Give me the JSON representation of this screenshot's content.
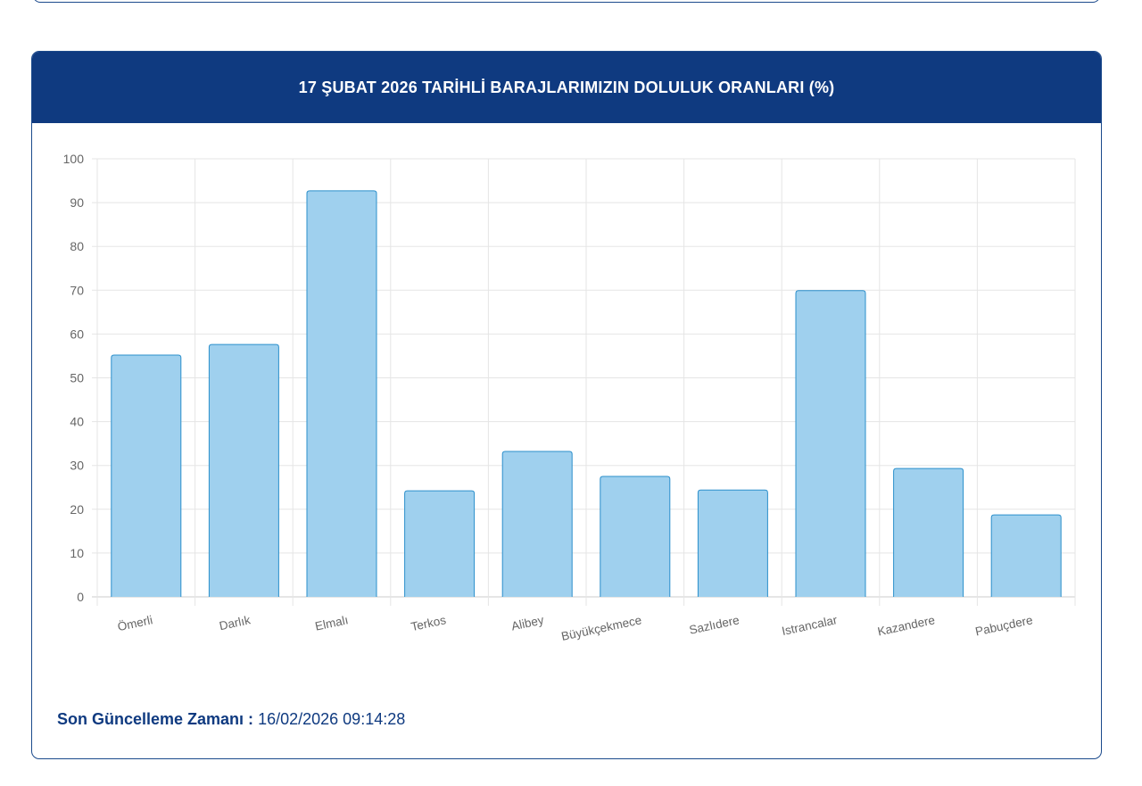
{
  "chart_data": {
    "type": "bar",
    "title": "17 ŞUBAT 2026 TARİHLİ BARAJLARIMIZIN DOLULUK ORANLARI (%)",
    "categories": [
      "Ömerli",
      "Darlık",
      "Elmalı",
      "Terkos",
      "Alibey",
      "Büyükçekmece",
      "Sazlıdere",
      "Istrancalar",
      "Kazandere",
      "Pabuçdere"
    ],
    "values": [
      55.2,
      57.6,
      92.7,
      24.2,
      33.2,
      27.5,
      24.4,
      69.9,
      29.3,
      18.7
    ],
    "ylim": [
      0,
      100
    ],
    "yticks": [
      0,
      10,
      20,
      30,
      40,
      50,
      60,
      70,
      80,
      90,
      100
    ],
    "grid": true,
    "legend": "none",
    "bar_fill": "#9fd0ee",
    "bar_border": "#2b8fcb"
  },
  "footer": {
    "label": "Son Güncelleme Zamanı :",
    "value": "16/02/2026 09:14:28"
  },
  "colors": {
    "header": "#0f3a80"
  }
}
